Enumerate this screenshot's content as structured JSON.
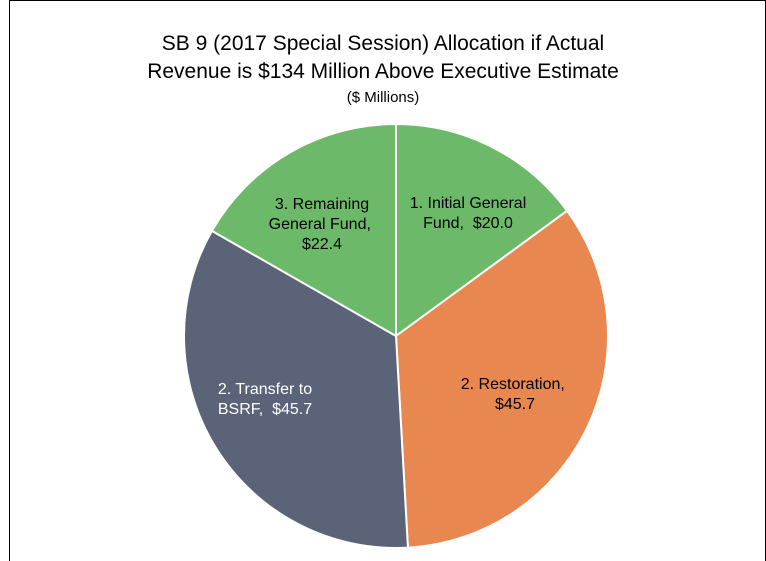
{
  "chart_data": {
    "type": "pie",
    "title": [
      "SB 9 (2017 Special Session) Allocation if Actual",
      "Revenue is $134 Million Above Executive Estimate"
    ],
    "subtitle": "($ Millions)",
    "categories": [
      "1. Initial General Fund",
      "2. Restoration",
      "2. Transfer to BSRF",
      "3. Remaining General Fund"
    ],
    "values": [
      20.0,
      45.7,
      45.7,
      22.4
    ],
    "value_labels": [
      "$20.0",
      "$45.7",
      "$45.7",
      "$22.4"
    ],
    "colors": [
      "#6db96a",
      "#e8874f",
      "#5a6378",
      "#6db96a"
    ]
  }
}
